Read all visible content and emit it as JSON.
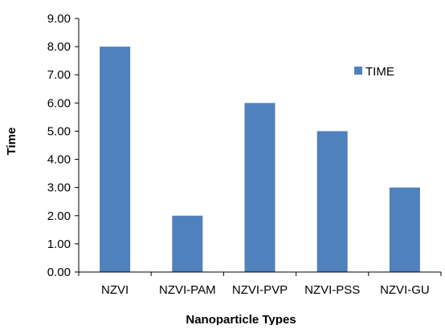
{
  "chart_data": {
    "type": "bar",
    "title": "",
    "xlabel": "Nanoparticle Types",
    "ylabel": "Time",
    "categories": [
      "NZVI",
      "NZVI-PAM",
      "NZVI-PVP",
      "NZVI-PSS",
      "NZVI-GU"
    ],
    "series": [
      {
        "name": "TIME",
        "values": [
          8.0,
          2.0,
          6.0,
          5.0,
          3.0
        ],
        "color": "#4f81bd"
      }
    ],
    "ylim": [
      0,
      9
    ],
    "ytick_step": 1,
    "ytick_labels": [
      "0.00",
      "1.00",
      "2.00",
      "3.00",
      "4.00",
      "5.00",
      "6.00",
      "7.00",
      "8.00",
      "9.00"
    ],
    "grid": false,
    "legend_position": "right"
  }
}
